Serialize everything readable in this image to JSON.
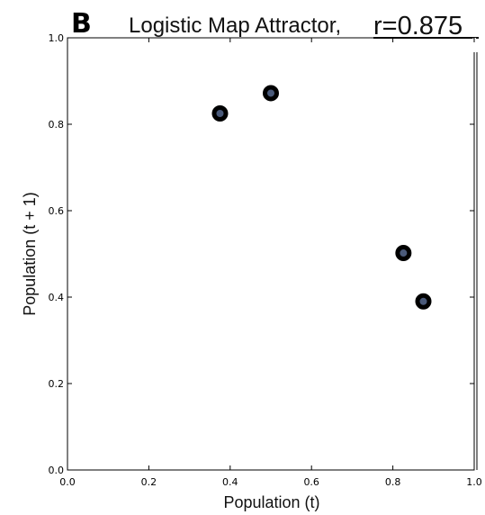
{
  "panel_label": "B",
  "title": "Logistic Map Attractor,",
  "r_label": "r=0.875",
  "chart_data": {
    "type": "scatter",
    "title": "Logistic Map Attractor, r=0.875",
    "xlabel": "Population (t)",
    "ylabel": "Population (t + 1)",
    "xlim": [
      0.0,
      1.0
    ],
    "ylim": [
      0.0,
      1.0
    ],
    "x_ticks": [
      "0.0",
      "0.2",
      "0.4",
      "0.6",
      "0.8",
      "1.0"
    ],
    "y_ticks": [
      "0.0",
      "0.2",
      "0.4",
      "0.6",
      "0.8",
      "1.0"
    ],
    "grid": false,
    "series": [
      {
        "points": [
          {
            "x": 0.375,
            "y": 0.825
          },
          {
            "x": 0.5,
            "y": 0.872
          },
          {
            "x": 0.826,
            "y": 0.502
          },
          {
            "x": 0.875,
            "y": 0.39
          }
        ],
        "color": "#4a5a7a",
        "edge_color": "#000000"
      }
    ]
  }
}
